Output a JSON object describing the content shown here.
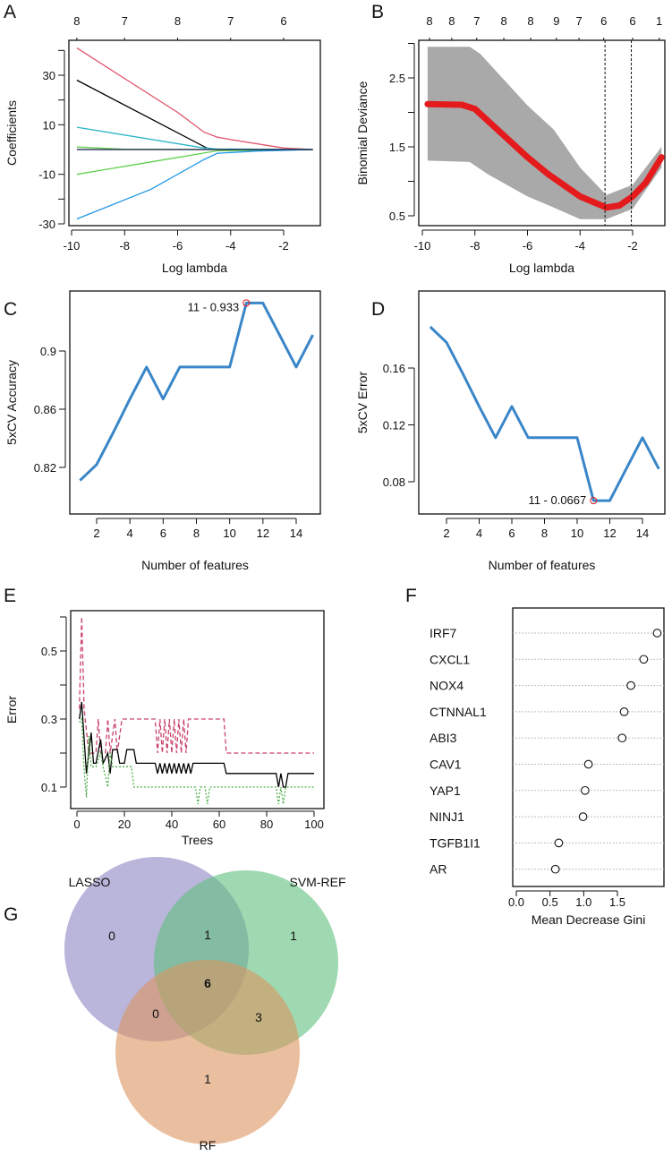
{
  "panel_labels": [
    "A",
    "B",
    "C",
    "D",
    "E",
    "F",
    "G"
  ],
  "chart_data": [
    {
      "panel": "A",
      "type": "line",
      "xlabel": "Log lambda",
      "ylabel": "Coefficients",
      "x_ticks": [
        "-10",
        "-8",
        "-6",
        "-4",
        "-2"
      ],
      "y_ticks": [
        "30",
        "10",
        "-10",
        "-30"
      ],
      "y_unlabeled_ticks": [
        40,
        20,
        -20
      ],
      "top_axis": {
        "at": [
          -9.8,
          -8,
          -6,
          -4,
          -2
        ],
        "labels": [
          "8",
          "7",
          "8",
          "7",
          "6"
        ]
      },
      "series": [
        {
          "color": "#df536b",
          "points": [
            [
              -9.8,
              41
            ],
            [
              -6,
              15
            ],
            [
              -5,
              7
            ],
            [
              -4.5,
              5
            ],
            [
              -4,
              4
            ],
            [
              -2,
              0.6
            ],
            [
              -0.9,
              0
            ]
          ]
        },
        {
          "color": "#000000",
          "points": [
            [
              -9.8,
              28
            ],
            [
              -4.9,
              0.6
            ],
            [
              -4.5,
              0
            ],
            [
              -0.9,
              0
            ]
          ]
        },
        {
          "color": "#2bb5c9",
          "points": [
            [
              -9.8,
              9
            ],
            [
              -5,
              0.6
            ],
            [
              -4.5,
              0.2
            ],
            [
              -0.9,
              0
            ]
          ]
        },
        {
          "color": "#61d04f",
          "points": [
            [
              -9.8,
              1
            ],
            [
              -8,
              0.1
            ],
            [
              -4.5,
              0
            ],
            [
              -0.9,
              0
            ]
          ]
        },
        {
          "color": "#61d04f",
          "points": [
            [
              -9.8,
              -10
            ],
            [
              -7,
              -5
            ],
            [
              -4.5,
              -0.5
            ],
            [
              -0.9,
              0
            ]
          ]
        },
        {
          "color": "#2297e6",
          "points": [
            [
              -9.8,
              -28
            ],
            [
              -7,
              -16
            ],
            [
              -5,
              -4
            ],
            [
              -4.5,
              -1.5
            ],
            [
              -3,
              -0.6
            ],
            [
              -0.9,
              0
            ]
          ]
        },
        {
          "color": "#1b1b4a",
          "points": [
            [
              -9.8,
              0
            ],
            [
              -0.9,
              0
            ]
          ]
        }
      ]
    },
    {
      "panel": "B",
      "type": "line",
      "xlabel": "Log lambda",
      "ylabel": "Binomial Deviance",
      "x_ticks": [
        "-10",
        "-8",
        "-6",
        "-4",
        "-2"
      ],
      "y_ticks": [
        "2.5",
        "1.5",
        "0.5"
      ],
      "y_unlabeled_ticks": [
        3,
        2,
        1
      ],
      "top_axis": {
        "at": [
          -9.73,
          -8.88,
          -7.93,
          -6.9,
          -5.88,
          -4.9,
          -4.04,
          -3.1,
          -2.0,
          -0.99
        ],
        "labels": [
          "8",
          "8",
          "7",
          "8",
          "8",
          "9",
          "7",
          "6",
          "6",
          "1"
        ]
      },
      "line_color": "#e41a1c",
      "band_color": "#a9a9a9",
      "mean": [
        [
          -9.8,
          2.12
        ],
        [
          -8.5,
          2.11
        ],
        [
          -8,
          2.05
        ],
        [
          -7,
          1.7
        ],
        [
          -6,
          1.35
        ],
        [
          -5.2,
          1.1
        ],
        [
          -4,
          0.78
        ],
        [
          -3,
          0.62
        ],
        [
          -2.5,
          0.65
        ],
        [
          -2,
          0.78
        ],
        [
          -1.5,
          0.98
        ],
        [
          -0.9,
          1.35
        ]
      ],
      "upper": [
        [
          -9.8,
          2.95
        ],
        [
          -8.2,
          2.95
        ],
        [
          -7.8,
          2.85
        ],
        [
          -6,
          2.1
        ],
        [
          -5,
          1.75
        ],
        [
          -4,
          1.2
        ],
        [
          -3,
          0.8
        ],
        [
          -2,
          0.95
        ],
        [
          -0.9,
          1.5
        ]
      ],
      "lower": [
        [
          -9.8,
          1.3
        ],
        [
          -8.2,
          1.28
        ],
        [
          -7.5,
          1.1
        ],
        [
          -6,
          0.78
        ],
        [
          -5,
          0.62
        ],
        [
          -4,
          0.45
        ],
        [
          -3,
          0.45
        ],
        [
          -2,
          0.6
        ],
        [
          -0.9,
          1.2
        ]
      ],
      "vlines": [
        -3.05,
        -2.05
      ]
    },
    {
      "panel": "C",
      "type": "line",
      "xlabel": "Number of features",
      "ylabel": "5xCV Accuracy",
      "x_ticks": [
        "2",
        "4",
        "6",
        "8",
        "10",
        "12",
        "14"
      ],
      "y_ticks": [
        "0.82",
        "0.86",
        "0.9"
      ],
      "line_color": "#3a86c8",
      "x": [
        1,
        2,
        3,
        4,
        5,
        6,
        7,
        8,
        9,
        10,
        11,
        12,
        13,
        14,
        15
      ],
      "y": [
        0.811,
        0.822,
        0.844,
        0.867,
        0.889,
        0.867,
        0.889,
        0.889,
        0.889,
        0.889,
        0.933,
        0.933,
        0.911,
        0.889,
        0.911
      ],
      "highlight": {
        "x": 11,
        "y": 0.933,
        "label": "11 - 0.933",
        "color": "#e41a1c"
      }
    },
    {
      "panel": "D",
      "type": "line",
      "xlabel": "Number of features",
      "ylabel": "5xCV Error",
      "x_ticks": [
        "2",
        "4",
        "6",
        "8",
        "10",
        "12",
        "14"
      ],
      "y_ticks": [
        "0.16",
        "0.12",
        "0.08"
      ],
      "line_color": "#3a86c8",
      "x": [
        1,
        2,
        3,
        4,
        5,
        6,
        7,
        8,
        9,
        10,
        11,
        12,
        13,
        14,
        15
      ],
      "y": [
        0.189,
        0.178,
        0.156,
        0.133,
        0.111,
        0.133,
        0.111,
        0.111,
        0.111,
        0.111,
        0.0667,
        0.0667,
        0.089,
        0.111,
        0.089
      ],
      "highlight": {
        "x": 11,
        "y": 0.0667,
        "label": "11 - 0.0667",
        "color": "#e41a1c"
      }
    },
    {
      "panel": "E",
      "type": "line",
      "xlabel": "Trees",
      "ylabel": "Error",
      "x_ticks": [
        "0",
        "20",
        "40",
        "60",
        "80",
        "100"
      ],
      "y_ticks": [
        "0.5",
        "0.3",
        "0.1"
      ],
      "y_unlabeled_ticks": [
        0.6,
        0.4,
        0.2
      ],
      "series": [
        {
          "color": "#c9436b",
          "style": "dashed",
          "points": [
            [
              1,
              0.33
            ],
            [
              2,
              0.6
            ],
            [
              3,
              0.33
            ],
            [
              5,
              0.2
            ],
            [
              8,
              0.2
            ],
            [
              9,
              0.3
            ],
            [
              10,
              0.2
            ],
            [
              12,
              0.2
            ],
            [
              13,
              0.3
            ],
            [
              14,
              0.2
            ],
            [
              16,
              0.3
            ],
            [
              17,
              0.2
            ],
            [
              19,
              0.3
            ],
            [
              33,
              0.3
            ],
            [
              34,
              0.2
            ],
            [
              35,
              0.3
            ],
            [
              36,
              0.2
            ],
            [
              37,
              0.3
            ],
            [
              38,
              0.2
            ],
            [
              39,
              0.3
            ],
            [
              40,
              0.2
            ],
            [
              41,
              0.3
            ],
            [
              42,
              0.2
            ],
            [
              43,
              0.3
            ],
            [
              44,
              0.2
            ],
            [
              45,
              0.3
            ],
            [
              46,
              0.2
            ],
            [
              47,
              0.3
            ],
            [
              62,
              0.3
            ],
            [
              63,
              0.2
            ],
            [
              100,
              0.2
            ]
          ]
        },
        {
          "color": "#000000",
          "style": "solid",
          "points": [
            [
              1,
              0.3
            ],
            [
              2,
              0.35
            ],
            [
              4,
              0.14
            ],
            [
              6,
              0.26
            ],
            [
              7,
              0.17
            ],
            [
              8,
              0.17
            ],
            [
              10,
              0.24
            ],
            [
              11,
              0.17
            ],
            [
              13,
              0.2
            ],
            [
              14,
              0.14
            ],
            [
              15,
              0.21
            ],
            [
              17,
              0.21
            ],
            [
              18,
              0.17
            ],
            [
              20,
              0.17
            ],
            [
              21,
              0.21
            ],
            [
              24,
              0.21
            ],
            [
              25,
              0.17
            ],
            [
              33,
              0.17
            ],
            [
              34,
              0.14
            ],
            [
              35,
              0.17
            ],
            [
              36,
              0.14
            ],
            [
              37,
              0.17
            ],
            [
              38,
              0.14
            ],
            [
              39,
              0.17
            ],
            [
              40,
              0.14
            ],
            [
              41,
              0.17
            ],
            [
              42,
              0.14
            ],
            [
              43,
              0.17
            ],
            [
              44,
              0.14
            ],
            [
              45,
              0.17
            ],
            [
              46,
              0.14
            ],
            [
              47,
              0.17
            ],
            [
              48,
              0.14
            ],
            [
              49,
              0.17
            ],
            [
              62,
              0.17
            ],
            [
              63,
              0.14
            ],
            [
              84,
              0.14
            ],
            [
              85,
              0.1
            ],
            [
              86,
              0.14
            ],
            [
              87,
              0.1
            ],
            [
              88,
              0.1
            ],
            [
              89,
              0.14
            ],
            [
              100,
              0.14
            ]
          ]
        },
        {
          "color": "#4daf4a",
          "style": "dotted",
          "points": [
            [
              1,
              0.29
            ],
            [
              2,
              0.3
            ],
            [
              3,
              0.15
            ],
            [
              4,
              0.07
            ],
            [
              5,
              0.25
            ],
            [
              6,
              0.16
            ],
            [
              8,
              0.16
            ],
            [
              10,
              0.2
            ],
            [
              11,
              0.16
            ],
            [
              13,
              0.1
            ],
            [
              14,
              0.2
            ],
            [
              15,
              0.16
            ],
            [
              23,
              0.16
            ],
            [
              24,
              0.1
            ],
            [
              50,
              0.1
            ],
            [
              51,
              0.05
            ],
            [
              52,
              0.1
            ],
            [
              54,
              0.1
            ],
            [
              55,
              0.05
            ],
            [
              56,
              0.1
            ],
            [
              84,
              0.1
            ],
            [
              85,
              0.05
            ],
            [
              86,
              0.1
            ],
            [
              87,
              0.05
            ],
            [
              88,
              0.1
            ],
            [
              100,
              0.1
            ]
          ]
        }
      ]
    },
    {
      "panel": "F",
      "type": "scatter",
      "xlabel": "Mean Decrease Gini",
      "x_ticks": [
        "0.0",
        "0.5",
        "1.0",
        "1.5"
      ],
      "categories": [
        "IRF7",
        "CXCL1",
        "NOX4",
        "CTNNAL1",
        "ABI3",
        "CAV1",
        "YAP1",
        "NINJ1",
        "TGFB1I1",
        "AR"
      ],
      "values": [
        2.09,
        1.89,
        1.7,
        1.6,
        1.57,
        1.07,
        1.02,
        0.99,
        0.63,
        0.58
      ]
    },
    {
      "panel": "G",
      "type": "venn",
      "sets": [
        {
          "name": "LASSO",
          "color": "#8c84c2"
        },
        {
          "name": "SVM-REF",
          "color": "#5fbf7f"
        },
        {
          "name": "RF",
          "color": "#dc945f"
        }
      ],
      "regions": [
        {
          "sets": [
            "LASSO"
          ],
          "count": "0"
        },
        {
          "sets": [
            "LASSO",
            "SVM-REF"
          ],
          "count": "1"
        },
        {
          "sets": [
            "SVM-REF"
          ],
          "count": "1"
        },
        {
          "sets": [
            "LASSO",
            "SVM-REF",
            "RF"
          ],
          "count": "6"
        },
        {
          "sets": [
            "LASSO",
            "RF"
          ],
          "count": "0"
        },
        {
          "sets": [
            "SVM-REF",
            "RF"
          ],
          "count": "3"
        },
        {
          "sets": [
            "RF"
          ],
          "count": "1"
        }
      ]
    }
  ]
}
